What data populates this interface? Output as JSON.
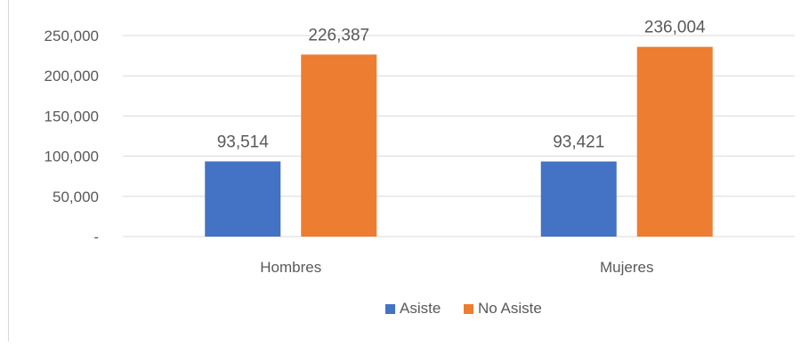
{
  "chart_data": {
    "type": "bar",
    "title": "",
    "xlabel": "",
    "ylabel": "",
    "categories": [
      "Hombres",
      "Mujeres"
    ],
    "series": [
      {
        "name": "Asiste",
        "values": [
          93514,
          93421
        ],
        "labels": [
          "93,514",
          "93,421"
        ],
        "color": "#4472c4"
      },
      {
        "name": "No Asiste",
        "values": [
          226387,
          236004
        ],
        "labels": [
          "226,387",
          "236,004"
        ],
        "color": "#ed7d31"
      }
    ],
    "ylim": [
      0,
      250000
    ],
    "yticks": [
      {
        "value": 0,
        "label": "-"
      },
      {
        "value": 50000,
        "label": "50,000"
      },
      {
        "value": 100000,
        "label": "100,000"
      },
      {
        "value": 150000,
        "label": "150,000"
      },
      {
        "value": 200000,
        "label": "200,000"
      },
      {
        "value": 250000,
        "label": "250,000"
      }
    ],
    "grid": true,
    "legend_position": "bottom"
  }
}
